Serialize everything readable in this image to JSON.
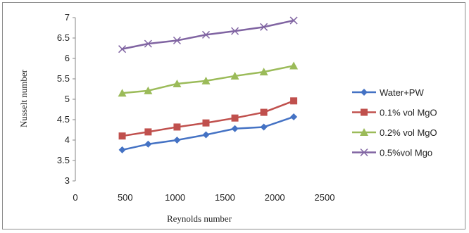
{
  "chart_data": {
    "type": "line",
    "title": "",
    "xlabel": "Reynolds number",
    "ylabel": "Nusselt number",
    "xlim": [
      0,
      2500
    ],
    "ylim": [
      3,
      7
    ],
    "xticks": [
      0,
      500,
      1000,
      1500,
      2000,
      2500
    ],
    "yticks": [
      3,
      3.5,
      4,
      4.5,
      5,
      5.5,
      6,
      6.5,
      7
    ],
    "grid": false,
    "legend_position": "right",
    "x": [
      470,
      730,
      1020,
      1310,
      1600,
      1890,
      2190
    ],
    "series": [
      {
        "name": "Water+PW",
        "marker": "diamond",
        "color": "#4472C4",
        "values": [
          3.76,
          3.9,
          4.0,
          4.13,
          4.28,
          4.32,
          4.57
        ]
      },
      {
        "name": "0.1% vol MgO",
        "marker": "square",
        "color": "#C0504D",
        "values": [
          4.1,
          4.2,
          4.32,
          4.42,
          4.54,
          4.68,
          4.96
        ]
      },
      {
        "name": "0.2% vol MgO",
        "marker": "triangle",
        "color": "#9BBB59",
        "values": [
          5.15,
          5.21,
          5.38,
          5.45,
          5.57,
          5.67,
          5.82
        ]
      },
      {
        "name": "0.5%vol Mgo",
        "marker": "x",
        "color": "#8064A2",
        "values": [
          6.23,
          6.36,
          6.44,
          6.58,
          6.67,
          6.77,
          6.93
        ]
      }
    ]
  }
}
